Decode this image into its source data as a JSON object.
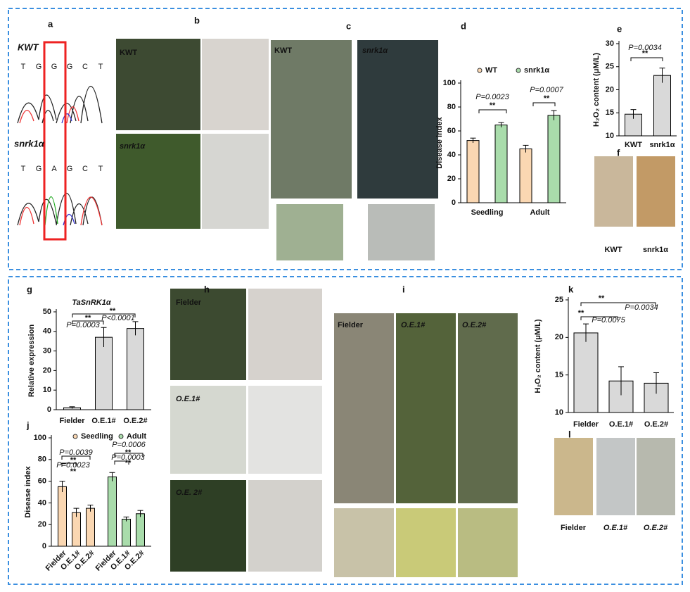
{
  "panels": [
    "a",
    "b",
    "c",
    "d",
    "e",
    "f",
    "g",
    "h",
    "i",
    "j",
    "k",
    "l"
  ],
  "samples": [
    "KWT",
    "snrk1α"
  ],
  "sequences": [
    [
      "T",
      "G",
      "G",
      "G",
      "C",
      "T"
    ],
    [
      "T",
      "G",
      "A",
      "G",
      "C",
      "T"
    ]
  ],
  "photo_labels": [
    "KWT",
    "snrk1α",
    "KWT",
    "snrk1α",
    "Fielder",
    "O.E.1#",
    "O.E. 2#",
    "Fielder",
    "O.E.1#",
    "O.E.2#"
  ],
  "f_labels": [
    "KWT",
    "snrk1α"
  ],
  "l_labels": [
    "Fielder",
    "O.E.1#",
    "O.E.2#"
  ],
  "chart_data": [
    {
      "type": "bar",
      "ylabel": "Disease index",
      "categories": [
        "Seedling",
        "Adult"
      ],
      "series": [
        {
          "name": "WT",
          "color": "#fad7b2",
          "values": [
            52,
            45
          ],
          "errors": [
            2,
            3
          ]
        },
        {
          "name": "snrk1α",
          "color": "#a9dcab",
          "values": [
            65,
            73
          ],
          "errors": [
            2,
            4
          ]
        }
      ],
      "ylim": [
        0,
        100
      ],
      "yticks": [
        0,
        20,
        40,
        60,
        80,
        100
      ],
      "annotations": [
        "P=0.0023",
        "**",
        "P=0.0007",
        "**"
      ]
    },
    {
      "type": "bar",
      "ylabel": "H₂O₂ content (μM/L)",
      "categories": [
        "KWT",
        "snrk1α"
      ],
      "values": [
        14.7,
        23.1
      ],
      "errors": [
        1,
        1.6
      ],
      "color": "#d9d9d9",
      "ylim": [
        10,
        30
      ],
      "yticks": [
        10,
        15,
        20,
        25,
        30
      ],
      "annotations": [
        "P=0.0034",
        "**"
      ]
    },
    {
      "type": "bar",
      "title": "TaSnRK1α",
      "ylabel": "Relative expression",
      "categories": [
        "Fielder",
        "O.E.1#",
        "O.E.2#"
      ],
      "values": [
        1,
        37,
        41.5
      ],
      "errors": [
        0.5,
        5,
        3.5
      ],
      "color": "#d9d9d9",
      "ylim": [
        0,
        50
      ],
      "yticks": [
        0,
        10,
        20,
        30,
        40,
        50
      ],
      "annotations": [
        "**",
        "P=0.0003",
        "**",
        "P<0.0001"
      ]
    },
    {
      "type": "bar",
      "ylabel": "Disease index",
      "categories": [
        "Fielder",
        "O.E.1#",
        "O.E.2#"
      ],
      "series": [
        {
          "name": "Seedling",
          "color": "#fad7b2",
          "values": [
            55,
            31,
            35
          ],
          "errors": [
            5,
            4,
            3
          ]
        },
        {
          "name": "Adult",
          "color": "#a9dcab",
          "values": [
            64,
            25,
            30
          ],
          "errors": [
            4,
            2,
            3
          ]
        }
      ],
      "ylim": [
        0,
        100
      ],
      "yticks": [
        0,
        20,
        40,
        60,
        80,
        100
      ],
      "annotations": [
        "P=0.0039",
        "P=0.0023",
        "**",
        "**",
        "P=0.0006",
        "P=0.0003",
        "**",
        "**"
      ]
    },
    {
      "type": "bar",
      "ylabel": "H₂O₂ content (μM/L)",
      "categories": [
        "Fielder",
        "O.E.1#",
        "O.E.2#"
      ],
      "values": [
        20.6,
        14.2,
        13.9
      ],
      "errors": [
        1.2,
        1.9,
        1.4
      ],
      "color": "#d9d9d9",
      "ylim": [
        10,
        25
      ],
      "yticks": [
        10,
        15,
        20,
        25
      ],
      "annotations": [
        "**",
        "P=0.0034",
        "**",
        "P=0.0075"
      ]
    }
  ]
}
